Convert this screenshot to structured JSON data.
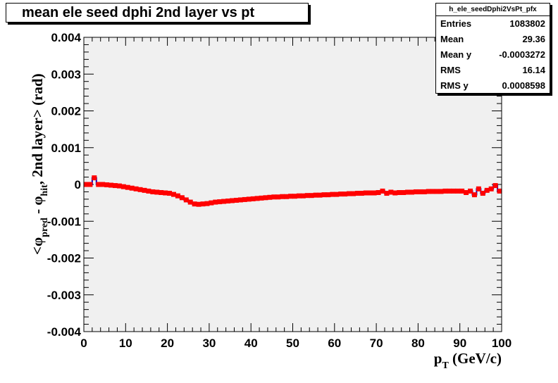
{
  "title": "mean ele seed dphi 2nd layer vs pt",
  "stats": {
    "name": "h_ele_seedDphi2VsPt_pfx",
    "rows": [
      {
        "label": "Entries",
        "value": "1083802"
      },
      {
        "label": "Mean",
        "value": "29.36"
      },
      {
        "label": "Mean y",
        "value": "-0.0003272"
      },
      {
        "label": "RMS",
        "value": "16.14"
      },
      {
        "label": "RMS y",
        "value": "0.0008598"
      }
    ]
  },
  "chart_data": {
    "type": "scatter",
    "title": "mean ele seed dphi 2nd layer vs pt",
    "xlabel": "p_T (GeV/c)",
    "ylabel": "<φ_pred - φ_hit, 2nd layer> (rad)",
    "xlim": [
      0,
      100
    ],
    "ylim": [
      -0.004,
      0.004
    ],
    "x_ticks": [
      "0",
      "10",
      "20",
      "30",
      "40",
      "50",
      "60",
      "70",
      "80",
      "90",
      "100"
    ],
    "y_ticks": [
      "-0.004",
      "-0.003",
      "-0.002",
      "-0.001",
      "0",
      "0.001",
      "0.002",
      "0.003",
      "0.004"
    ],
    "colors": {
      "marker": "#ff0000",
      "line": "#0000cc",
      "frame": "#f0f0f0"
    },
    "series": [
      {
        "x": [
          0.5,
          1.5,
          2.5,
          3.5,
          4.5,
          5.5,
          6.5,
          7.5,
          8.5,
          9.5,
          10.5,
          11.5,
          12.5,
          13.5,
          14.5,
          15.5,
          16.5,
          17.5,
          18.5,
          19.5,
          20.5,
          21.5,
          22.5,
          23.5,
          24.5,
          25.5,
          26.5,
          27.5,
          28.5,
          29.5,
          30.5,
          31.5,
          32.5,
          33.5,
          34.5,
          35.5,
          36.5,
          37.5,
          38.5,
          39.5,
          40.5,
          41.5,
          42.5,
          43.5,
          44.5,
          45.5,
          46.5,
          47.5,
          48.5,
          49.5,
          50.5,
          51.5,
          52.5,
          53.5,
          54.5,
          55.5,
          56.5,
          57.5,
          58.5,
          59.5,
          60.5,
          61.5,
          62.5,
          63.5,
          64.5,
          65.5,
          66.5,
          67.5,
          68.5,
          69.5,
          70.5,
          71.5,
          72.5,
          73.5,
          74.5,
          75.5,
          76.5,
          77.5,
          78.5,
          79.5,
          80.5,
          81.5,
          82.5,
          83.5,
          84.5,
          85.5,
          86.5,
          87.5,
          88.5,
          89.5,
          90.5,
          91.5,
          92.5,
          93.5,
          94.5,
          95.5,
          96.5,
          97.5,
          98.5,
          99.5
        ],
        "y": [
          0,
          0,
          0.00018,
          0,
          0,
          -1e-05,
          -2e-05,
          -3e-05,
          -4e-05,
          -6e-05,
          -8e-05,
          -0.0001,
          -0.00012,
          -0.00014,
          -0.00016,
          -0.00018,
          -0.0002,
          -0.00021,
          -0.00022,
          -0.00023,
          -0.00024,
          -0.00027,
          -0.00031,
          -0.00036,
          -0.00042,
          -0.00048,
          -0.00053,
          -0.00054,
          -0.00053,
          -0.00052,
          -0.0005,
          -0.00048,
          -0.00047,
          -0.00046,
          -0.00045,
          -0.00044,
          -0.00043,
          -0.00042,
          -0.00041,
          -0.0004,
          -0.00039,
          -0.00038,
          -0.00037,
          -0.00036,
          -0.00035,
          -0.00034,
          -0.00034,
          -0.00033,
          -0.00033,
          -0.00032,
          -0.00032,
          -0.00031,
          -0.00031,
          -0.0003,
          -0.0003,
          -0.00029,
          -0.00029,
          -0.00028,
          -0.00028,
          -0.00027,
          -0.00027,
          -0.00026,
          -0.00026,
          -0.00025,
          -0.00025,
          -0.00024,
          -0.00024,
          -0.00023,
          -0.00023,
          -0.00023,
          -0.00022,
          -0.00018,
          -0.00024,
          -0.00021,
          -0.00023,
          -0.00022,
          -0.00022,
          -0.00021,
          -0.00021,
          -0.0002,
          -0.0002,
          -0.0002,
          -0.00019,
          -0.00019,
          -0.00019,
          -0.00019,
          -0.00018,
          -0.00018,
          -0.00018,
          -0.00018,
          -0.00018,
          -0.00022,
          -0.00018,
          -0.00028,
          -0.00012,
          -0.00024,
          -0.00016,
          -0.00012,
          -3e-05,
          -0.00018
        ]
      }
    ]
  }
}
